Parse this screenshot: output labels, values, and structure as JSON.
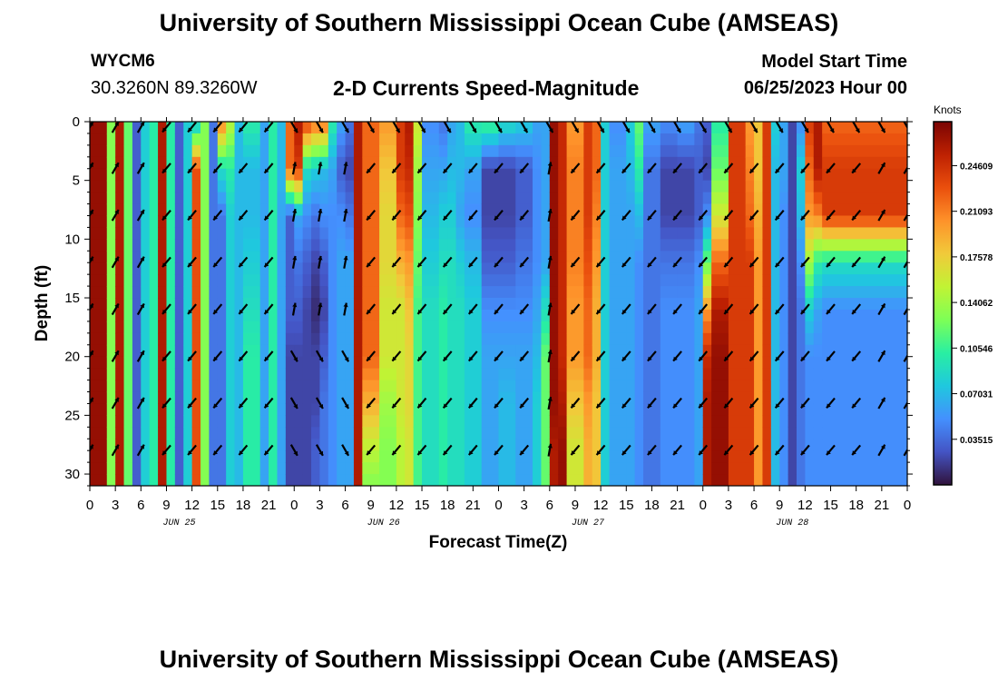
{
  "header": {
    "title": "University of Southern Mississippi Ocean Cube (AMSEAS)",
    "station": "WYCM6",
    "coordinates": "30.3260N  89.3260W",
    "subtitle": "2-D Currents Speed-Magnitude",
    "model_start_label": "Model Start Time",
    "model_start_value": "06/25/2023 Hour 00"
  },
  "footer": {
    "title": "University of Southern Mississippi Ocean Cube (AMSEAS)"
  },
  "chart_data": {
    "type": "heatmap",
    "title": "2-D Currents Speed-Magnitude",
    "xlabel": "Forecast Time(Z)",
    "ylabel": "Depth (ft)",
    "x_ticks": [
      "0",
      "3",
      "6",
      "9",
      "12",
      "15",
      "18",
      "21",
      "0",
      "3",
      "6",
      "9",
      "12",
      "15",
      "18",
      "21",
      "0",
      "3",
      "6",
      "9",
      "12",
      "15",
      "18",
      "21",
      "0",
      "3",
      "6",
      "9",
      "12",
      "15",
      "18",
      "21",
      "0"
    ],
    "x_range_hours": [
      0,
      96
    ],
    "date_labels": [
      {
        "label": "JUN 25",
        "hour": 10.5
      },
      {
        "label": "JUN 26",
        "hour": 34.5
      },
      {
        "label": "JUN 27",
        "hour": 58.5
      },
      {
        "label": "JUN 28",
        "hour": 82.5
      }
    ],
    "y_ticks": [
      "0",
      "5",
      "10",
      "15",
      "20",
      "25",
      "30"
    ],
    "y_range_ft": [
      0,
      31
    ],
    "colorbar": {
      "unit": "Knots",
      "ticks": [
        "0.24609",
        "0.21093",
        "0.17578",
        "0.14062",
        "0.10546",
        "0.07031",
        "0.03515"
      ],
      "range": [
        0,
        0.28
      ],
      "colors": [
        "#30123b",
        "#4454c4",
        "#4490fe",
        "#1fc8de",
        "#29efa2",
        "#7dff56",
        "#c1f334",
        "#f1ca3a",
        "#fe922a",
        "#ea4f0d",
        "#be2102",
        "#7a0403"
      ]
    },
    "depth_columns_ft": [
      0,
      4,
      8,
      12,
      16,
      20,
      24,
      28,
      31
    ],
    "speed_profiles_knots": [
      {
        "hour": 0,
        "speeds": [
          0.27,
          0.27,
          0.27,
          0.27,
          0.27,
          0.27,
          0.27,
          0.27,
          0.27
        ]
      },
      {
        "hour": 2,
        "speeds": [
          0.13,
          0.13,
          0.13,
          0.13,
          0.13,
          0.13,
          0.13,
          0.13,
          0.13
        ]
      },
      {
        "hour": 3,
        "speeds": [
          0.26,
          0.26,
          0.26,
          0.26,
          0.26,
          0.26,
          0.26,
          0.26,
          0.26
        ]
      },
      {
        "hour": 4,
        "speeds": [
          0.12,
          0.12,
          0.12,
          0.12,
          0.12,
          0.12,
          0.12,
          0.12,
          0.12
        ]
      },
      {
        "hour": 5,
        "speeds": [
          0.03,
          0.03,
          0.03,
          0.03,
          0.03,
          0.03,
          0.03,
          0.03,
          0.03
        ]
      },
      {
        "hour": 6,
        "speeds": [
          0.08,
          0.08,
          0.08,
          0.08,
          0.08,
          0.08,
          0.08,
          0.08,
          0.08
        ]
      },
      {
        "hour": 7,
        "speeds": [
          0.1,
          0.1,
          0.1,
          0.1,
          0.1,
          0.1,
          0.1,
          0.1,
          0.1
        ]
      },
      {
        "hour": 8,
        "speeds": [
          0.26,
          0.26,
          0.26,
          0.26,
          0.26,
          0.26,
          0.26,
          0.26,
          0.26
        ]
      },
      {
        "hour": 9,
        "speeds": [
          0.1,
          0.1,
          0.1,
          0.1,
          0.1,
          0.1,
          0.1,
          0.1,
          0.1
        ]
      },
      {
        "hour": 10,
        "speeds": [
          0.03,
          0.03,
          0.03,
          0.03,
          0.03,
          0.03,
          0.03,
          0.03,
          0.03
        ]
      },
      {
        "hour": 11,
        "speeds": [
          0.08,
          0.08,
          0.08,
          0.08,
          0.08,
          0.08,
          0.08,
          0.08,
          0.08
        ]
      },
      {
        "hour": 12,
        "speeds": [
          0.07,
          0.23,
          0.23,
          0.23,
          0.23,
          0.23,
          0.23,
          0.23,
          0.23
        ]
      },
      {
        "hour": 13,
        "speeds": [
          0.13,
          0.13,
          0.13,
          0.13,
          0.13,
          0.13,
          0.13,
          0.13,
          0.13
        ]
      },
      {
        "hour": 14,
        "speeds": [
          0.04,
          0.04,
          0.04,
          0.04,
          0.04,
          0.04,
          0.04,
          0.04,
          0.04
        ]
      },
      {
        "hour": 15,
        "speeds": [
          0.21,
          0.09,
          0.04,
          0.04,
          0.04,
          0.04,
          0.04,
          0.04,
          0.04
        ]
      },
      {
        "hour": 16,
        "speeds": [
          0.15,
          0.1,
          0.08,
          0.08,
          0.08,
          0.08,
          0.08,
          0.08,
          0.08
        ]
      },
      {
        "hour": 17,
        "speeds": [
          0.07,
          0.07,
          0.07,
          0.07,
          0.07,
          0.07,
          0.07,
          0.07,
          0.07
        ]
      },
      {
        "hour": 18,
        "speeds": [
          0.1,
          0.07,
          0.07,
          0.08,
          0.09,
          0.1,
          0.1,
          0.1,
          0.1
        ]
      },
      {
        "hour": 20,
        "speeds": [
          0.06,
          0.06,
          0.06,
          0.06,
          0.06,
          0.06,
          0.06,
          0.06,
          0.06
        ]
      },
      {
        "hour": 21,
        "speeds": [
          0.1,
          0.1,
          0.1,
          0.1,
          0.1,
          0.1,
          0.1,
          0.1,
          0.1
        ]
      },
      {
        "hour": 22,
        "speeds": [
          0.07,
          0.07,
          0.06,
          0.06,
          0.06,
          0.06,
          0.06,
          0.06,
          0.06
        ]
      },
      {
        "hour": 23,
        "speeds": [
          0.22,
          0.22,
          0.03,
          0.03,
          0.03,
          0.02,
          0.02,
          0.02,
          0.02
        ]
      },
      {
        "hour": 24,
        "speeds": [
          0.26,
          0.24,
          0.06,
          0.04,
          0.03,
          0.02,
          0.02,
          0.02,
          0.02
        ]
      },
      {
        "hour": 25,
        "speeds": [
          0.24,
          0.09,
          0.05,
          0.03,
          0.02,
          0.02,
          0.02,
          0.02,
          0.02
        ]
      },
      {
        "hour": 26,
        "speeds": [
          0.22,
          0.08,
          0.04,
          0.02,
          0.01,
          0.02,
          0.02,
          0.03,
          0.03
        ]
      },
      {
        "hour": 27,
        "speeds": [
          0.22,
          0.07,
          0.05,
          0.03,
          0.02,
          0.03,
          0.04,
          0.04,
          0.04
        ]
      },
      {
        "hour": 28,
        "speeds": [
          0.1,
          0.06,
          0.05,
          0.05,
          0.05,
          0.05,
          0.05,
          0.05,
          0.05
        ]
      },
      {
        "hour": 29,
        "speeds": [
          0.06,
          0.03,
          0.05,
          0.06,
          0.06,
          0.06,
          0.06,
          0.06,
          0.06
        ]
      },
      {
        "hour": 30,
        "speeds": [
          0.04,
          0.02,
          0.04,
          0.06,
          0.06,
          0.06,
          0.06,
          0.06,
          0.06
        ]
      },
      {
        "hour": 31,
        "speeds": [
          0.26,
          0.26,
          0.26,
          0.26,
          0.26,
          0.26,
          0.26,
          0.26,
          0.26
        ]
      },
      {
        "hour": 32,
        "speeds": [
          0.22,
          0.22,
          0.22,
          0.22,
          0.22,
          0.22,
          0.19,
          0.15,
          0.13
        ]
      },
      {
        "hour": 34,
        "speeds": [
          0.2,
          0.18,
          0.17,
          0.17,
          0.16,
          0.16,
          0.14,
          0.13,
          0.13
        ]
      },
      {
        "hour": 36,
        "speeds": [
          0.24,
          0.24,
          0.22,
          0.19,
          0.16,
          0.16,
          0.16,
          0.15,
          0.15
        ]
      },
      {
        "hour": 37,
        "speeds": [
          0.26,
          0.25,
          0.23,
          0.2,
          0.18,
          0.17,
          0.17,
          0.16,
          0.16
        ]
      },
      {
        "hour": 38,
        "speeds": [
          0.16,
          0.14,
          0.13,
          0.12,
          0.11,
          0.11,
          0.11,
          0.11,
          0.11
        ]
      },
      {
        "hour": 39,
        "speeds": [
          0.05,
          0.06,
          0.07,
          0.08,
          0.09,
          0.09,
          0.09,
          0.09,
          0.09
        ]
      },
      {
        "hour": 41,
        "speeds": [
          0.04,
          0.06,
          0.08,
          0.09,
          0.1,
          0.1,
          0.1,
          0.1,
          0.1
        ]
      },
      {
        "hour": 42,
        "speeds": [
          0.06,
          0.07,
          0.08,
          0.09,
          0.09,
          0.09,
          0.09,
          0.09,
          0.09
        ]
      },
      {
        "hour": 43,
        "speeds": [
          0.07,
          0.07,
          0.06,
          0.08,
          0.09,
          0.09,
          0.09,
          0.09,
          0.09
        ]
      },
      {
        "hour": 44,
        "speeds": [
          0.1,
          0.06,
          0.05,
          0.07,
          0.08,
          0.08,
          0.08,
          0.08,
          0.08
        ]
      },
      {
        "hour": 46,
        "speeds": [
          0.11,
          0.02,
          0.02,
          0.03,
          0.05,
          0.06,
          0.06,
          0.06,
          0.06
        ]
      },
      {
        "hour": 48,
        "speeds": [
          0.09,
          0.02,
          0.02,
          0.03,
          0.05,
          0.06,
          0.07,
          0.07,
          0.07
        ]
      },
      {
        "hour": 50,
        "speeds": [
          0.08,
          0.03,
          0.03,
          0.04,
          0.05,
          0.06,
          0.06,
          0.06,
          0.06
        ]
      },
      {
        "hour": 52,
        "speeds": [
          0.06,
          0.05,
          0.05,
          0.05,
          0.06,
          0.07,
          0.08,
          0.08,
          0.08
        ]
      },
      {
        "hour": 53,
        "speeds": [
          0.06,
          0.06,
          0.06,
          0.06,
          0.09,
          0.12,
          0.12,
          0.12,
          0.12
        ]
      },
      {
        "hour": 54,
        "speeds": [
          0.27,
          0.27,
          0.27,
          0.27,
          0.27,
          0.27,
          0.27,
          0.26,
          0.26
        ]
      },
      {
        "hour": 55,
        "speeds": [
          0.25,
          0.25,
          0.25,
          0.25,
          0.25,
          0.25,
          0.26,
          0.27,
          0.27
        ]
      },
      {
        "hour": 56,
        "speeds": [
          0.2,
          0.21,
          0.21,
          0.21,
          0.2,
          0.2,
          0.18,
          0.16,
          0.16
        ]
      },
      {
        "hour": 58,
        "speeds": [
          0.24,
          0.24,
          0.24,
          0.23,
          0.22,
          0.22,
          0.2,
          0.19,
          0.19
        ]
      },
      {
        "hour": 59,
        "speeds": [
          0.22,
          0.22,
          0.21,
          0.2,
          0.19,
          0.19,
          0.18,
          0.18,
          0.18
        ]
      },
      {
        "hour": 60,
        "speeds": [
          0.08,
          0.08,
          0.08,
          0.08,
          0.08,
          0.08,
          0.08,
          0.08,
          0.08
        ]
      },
      {
        "hour": 61,
        "speeds": [
          0.05,
          0.06,
          0.06,
          0.06,
          0.06,
          0.06,
          0.06,
          0.06,
          0.06
        ]
      },
      {
        "hour": 63,
        "speeds": [
          0.08,
          0.07,
          0.06,
          0.06,
          0.06,
          0.06,
          0.06,
          0.06,
          0.06
        ]
      },
      {
        "hour": 64,
        "speeds": [
          0.12,
          0.1,
          0.07,
          0.05,
          0.05,
          0.05,
          0.05,
          0.05,
          0.05
        ]
      },
      {
        "hour": 65,
        "speeds": [
          0.06,
          0.04,
          0.04,
          0.04,
          0.04,
          0.04,
          0.04,
          0.04,
          0.04
        ]
      },
      {
        "hour": 67,
        "speeds": [
          0.05,
          0.02,
          0.02,
          0.04,
          0.05,
          0.05,
          0.05,
          0.05,
          0.05
        ]
      },
      {
        "hour": 69,
        "speeds": [
          0.06,
          0.02,
          0.02,
          0.04,
          0.05,
          0.05,
          0.05,
          0.05,
          0.05
        ]
      },
      {
        "hour": 71,
        "speeds": [
          0.04,
          0.03,
          0.03,
          0.05,
          0.06,
          0.06,
          0.06,
          0.06,
          0.06
        ]
      },
      {
        "hour": 72,
        "speeds": [
          0.03,
          0.02,
          0.05,
          0.12,
          0.2,
          0.25,
          0.26,
          0.26,
          0.26
        ]
      },
      {
        "hour": 73,
        "speeds": [
          0.1,
          0.12,
          0.16,
          0.22,
          0.26,
          0.27,
          0.27,
          0.27,
          0.27
        ]
      },
      {
        "hour": 75,
        "speeds": [
          0.24,
          0.24,
          0.24,
          0.24,
          0.24,
          0.24,
          0.24,
          0.24,
          0.24
        ]
      },
      {
        "hour": 77,
        "speeds": [
          0.2,
          0.21,
          0.22,
          0.24,
          0.24,
          0.24,
          0.24,
          0.24,
          0.24
        ]
      },
      {
        "hour": 78,
        "speeds": [
          0.18,
          0.18,
          0.19,
          0.2,
          0.2,
          0.2,
          0.2,
          0.2,
          0.2
        ]
      },
      {
        "hour": 79,
        "speeds": [
          0.24,
          0.24,
          0.24,
          0.24,
          0.24,
          0.24,
          0.24,
          0.24,
          0.24
        ]
      },
      {
        "hour": 80,
        "speeds": [
          0.08,
          0.07,
          0.07,
          0.07,
          0.07,
          0.07,
          0.07,
          0.07,
          0.07
        ]
      },
      {
        "hour": 81,
        "speeds": [
          0.06,
          0.06,
          0.05,
          0.05,
          0.05,
          0.05,
          0.05,
          0.05,
          0.05
        ]
      },
      {
        "hour": 82,
        "speeds": [
          0.02,
          0.02,
          0.02,
          0.02,
          0.02,
          0.02,
          0.02,
          0.02,
          0.02
        ]
      },
      {
        "hour": 83,
        "speeds": [
          0.05,
          0.08,
          0.07,
          0.05,
          0.04,
          0.04,
          0.04,
          0.04,
          0.04
        ]
      },
      {
        "hour": 84,
        "speeds": [
          0.24,
          0.22,
          0.2,
          0.14,
          0.08,
          0.05,
          0.05,
          0.05,
          0.05
        ]
      },
      {
        "hour": 85,
        "speeds": [
          0.26,
          0.26,
          0.21,
          0.1,
          0.06,
          0.05,
          0.05,
          0.05,
          0.05
        ]
      },
      {
        "hour": 86,
        "speeds": [
          0.22,
          0.24,
          0.24,
          0.09,
          0.05,
          0.05,
          0.05,
          0.05,
          0.05
        ]
      }
    ],
    "vector_depths_ft": [
      0,
      3.5,
      7.5,
      11.5,
      15.5,
      19.5,
      23.5,
      27.5
    ],
    "vector_hours": [
      0,
      3,
      6,
      9,
      12,
      15,
      18,
      21,
      24,
      27,
      30,
      33,
      36,
      39,
      42,
      45,
      48,
      51,
      54,
      57,
      60,
      63,
      66,
      69,
      72,
      75,
      78,
      81,
      84,
      87,
      90,
      93,
      96
    ],
    "vector_direction_note": "current direction arrows (degrees, screen-angle convention)"
  }
}
